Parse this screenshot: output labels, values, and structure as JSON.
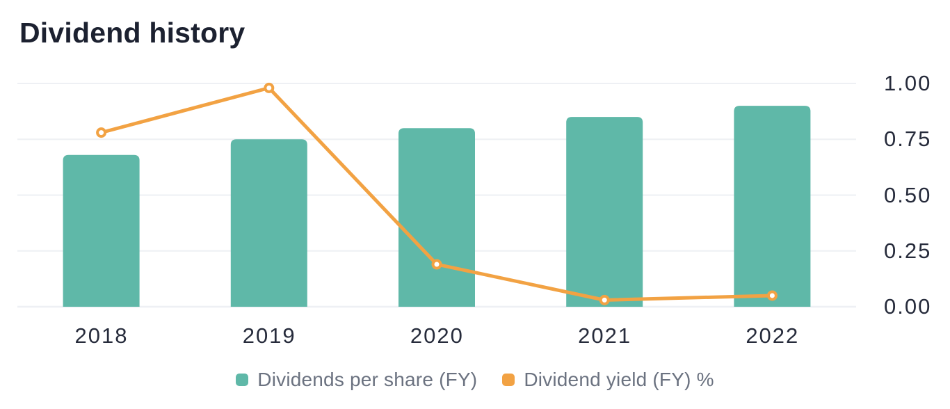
{
  "title": "Dividend history",
  "colors": {
    "background": "#ffffff",
    "title_text": "#1c2130",
    "axis_text": "#262b3b",
    "legend_text": "#6b7280",
    "gridline": "#eef0f4",
    "bar_series": "#5fb8a8",
    "line_series": "#f2a243",
    "marker_fill": "#ffffff"
  },
  "chart_data": {
    "type": "bar",
    "subtype": "combo bar + line, dual-series, single visible right axis",
    "title": "Dividend history",
    "categories": [
      "2018",
      "2019",
      "2020",
      "2021",
      "2022"
    ],
    "series": [
      {
        "name": "Dividends per share (FY)",
        "type": "bar",
        "color": "#5fb8a8",
        "values": [
          0.68,
          0.75,
          0.8,
          0.85,
          0.9
        ]
      },
      {
        "name": "Dividend yield (FY) %",
        "type": "line",
        "color": "#f2a243",
        "values": [
          0.78,
          0.98,
          0.19,
          0.03,
          0.05
        ]
      }
    ],
    "xlabel": "",
    "ylabel": "",
    "y_axis": {
      "side": "right",
      "min": 0,
      "max": 1,
      "ticks": [
        0,
        0.25,
        0.5,
        0.75,
        1
      ],
      "tick_labels": [
        "0.00",
        "0.25",
        "0.50",
        "0.75",
        "1.00"
      ]
    },
    "grid": true,
    "legend_position": "bottom"
  }
}
